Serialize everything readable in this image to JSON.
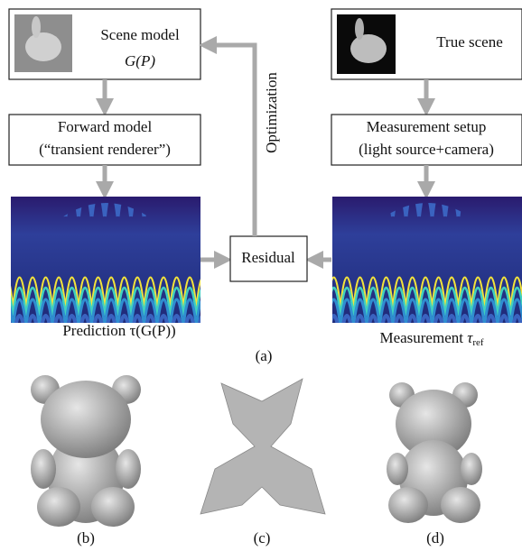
{
  "scene_model": {
    "title": "Scene model",
    "formula": "G(P)"
  },
  "forward_model": {
    "line1": "Forward model",
    "line2": "(“transient renderer”)"
  },
  "optimization": "Optimization",
  "true_scene": "True scene",
  "measurement_setup": {
    "line1": "Measurement setup",
    "line2": "(light source+camera)"
  },
  "residual": "Residual",
  "prediction_caption": "Prediction τ(G(P))",
  "measurement_caption": {
    "text": "Measurement",
    "symbol": "τ",
    "subscript": "ref"
  },
  "panel_labels": [
    "(a)",
    "(b)",
    "(c)",
    "(d)"
  ]
}
